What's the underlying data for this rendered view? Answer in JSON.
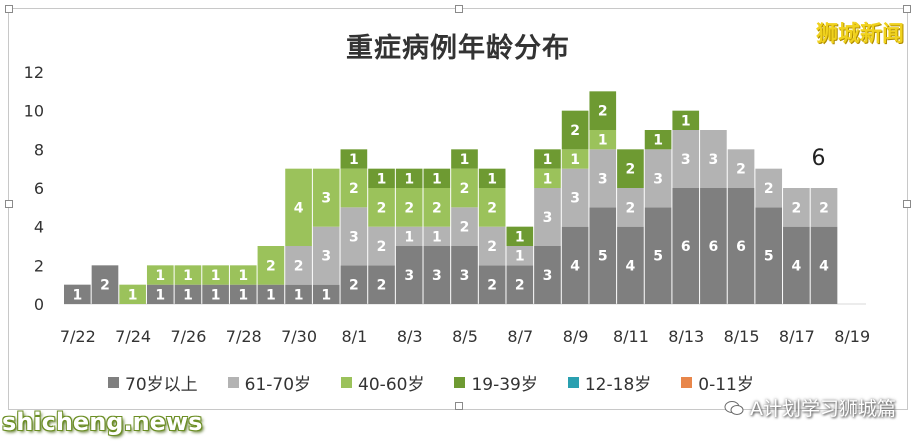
{
  "title": "重症病例年龄分布",
  "brand": "狮城新闻",
  "watermark_left": "shicheng.news",
  "watermark_right": "A计划学习狮城篇",
  "annotation": "6",
  "legend": [
    {
      "label": "70岁以上",
      "color": "#7f7f7f"
    },
    {
      "label": "61-70岁",
      "color": "#b3b3b3"
    },
    {
      "label": "40-60岁",
      "color": "#9bc25b"
    },
    {
      "label": "19-39岁",
      "color": "#6e9a32"
    },
    {
      "label": "12-18岁",
      "color": "#2aa0b0"
    },
    {
      "label": "0-11岁",
      "color": "#e8864a"
    }
  ],
  "chart_data": {
    "type": "bar",
    "stacked": true,
    "title": "重症病例年龄分布",
    "categories": [
      "7/22",
      "7/23",
      "7/24",
      "7/25",
      "7/26",
      "7/27",
      "7/28",
      "7/29",
      "7/30",
      "7/31",
      "8/1",
      "8/2",
      "8/3",
      "8/4",
      "8/5",
      "8/6",
      "8/7",
      "8/8",
      "8/9",
      "8/10",
      "8/11",
      "8/12",
      "8/13",
      "8/14",
      "8/15",
      "8/16",
      "8/17",
      "8/18",
      "8/19"
    ],
    "xtick_labels": [
      "7/22",
      "7/24",
      "7/26",
      "7/28",
      "7/30",
      "8/1",
      "8/3",
      "8/5",
      "8/7",
      "8/9",
      "8/11",
      "8/13",
      "8/15",
      "8/17",
      "8/19"
    ],
    "yticks": [
      0,
      2,
      4,
      6,
      8,
      10,
      12
    ],
    "ylim": [
      0,
      12
    ],
    "legend_position": "bottom",
    "series": [
      {
        "name": "70岁以上",
        "color": "#7f7f7f",
        "values": [
          1,
          2,
          0,
          1,
          1,
          1,
          1,
          1,
          1,
          1,
          2,
          2,
          3,
          3,
          3,
          2,
          2,
          3,
          4,
          5,
          4,
          5,
          6,
          6,
          6,
          5,
          4,
          4,
          0
        ]
      },
      {
        "name": "61-70岁",
        "color": "#b3b3b3",
        "values": [
          0,
          0,
          0,
          0,
          0,
          0,
          0,
          0,
          2,
          3,
          3,
          2,
          1,
          1,
          2,
          2,
          1,
          3,
          3,
          3,
          2,
          3,
          3,
          3,
          2,
          2,
          2,
          2,
          0
        ]
      },
      {
        "name": "40-60岁",
        "color": "#9bc25b",
        "values": [
          0,
          0,
          1,
          1,
          1,
          1,
          1,
          2,
          4,
          3,
          2,
          2,
          2,
          2,
          2,
          2,
          0,
          1,
          1,
          1,
          0,
          0,
          0,
          0,
          0,
          0,
          0,
          0,
          0
        ]
      },
      {
        "name": "19-39岁",
        "color": "#6e9a32",
        "values": [
          0,
          0,
          0,
          0,
          0,
          0,
          0,
          0,
          0,
          0,
          1,
          1,
          1,
          1,
          1,
          1,
          1,
          1,
          2,
          2,
          2,
          1,
          1,
          0,
          0,
          0,
          0,
          0,
          0
        ]
      },
      {
        "name": "12-18岁",
        "color": "#2aa0b0",
        "values": [
          0,
          0,
          0,
          0,
          0,
          0,
          0,
          0,
          0,
          0,
          0,
          0,
          0,
          0,
          0,
          0,
          0,
          0,
          0,
          0,
          0,
          0,
          0,
          0,
          0,
          0,
          0,
          0,
          0
        ]
      },
      {
        "name": "0-11岁",
        "color": "#e8864a",
        "values": [
          0,
          0,
          0,
          0,
          0,
          0,
          0,
          0,
          0,
          0,
          0,
          0,
          0,
          0,
          0,
          0,
          0,
          0,
          0,
          0,
          0,
          0,
          0,
          0,
          0,
          0,
          0,
          0,
          0
        ]
      }
    ]
  }
}
